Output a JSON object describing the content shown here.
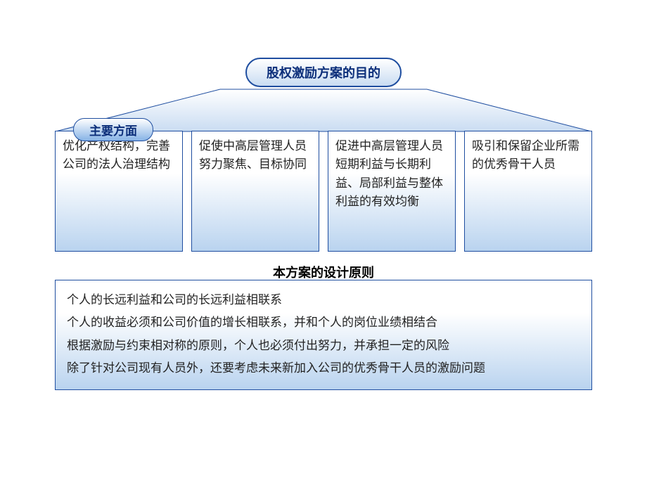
{
  "title": {
    "text": "股权激励方案的目的",
    "font_size": 18,
    "font_weight": "bold",
    "text_color": "#0b2e7a",
    "border_color": "#1f4ea0",
    "bg_gradient_top": "#ffffff",
    "bg_gradient_bottom": "#c9dcf2"
  },
  "trapezoid": {
    "fill_top": "#ffffff",
    "fill_bottom": "#c9dcf2",
    "stroke": "#1f4ea0"
  },
  "badge": {
    "text": "主要方面",
    "font_size": 17,
    "text_color": "#0b2e7a",
    "bg_gradient_top": "#ffffff",
    "bg_gradient_bottom": "#87b3e6",
    "border_color": "#1f4ea0"
  },
  "cards": {
    "font_size": 17,
    "text_color": "#222222",
    "border_color": "#1f4ea0",
    "bg_gradient_top": "#ffffff",
    "bg_gradient_bottom": "#b9d3ef",
    "items": [
      "优化产权结构，完善公司的法人治理结构",
      "促使中高层管理人员努力聚焦、目标协同",
      "促进中高层管理人员短期利益与长期利益、局部利益与整体利益的有效均衡",
      "吸引和保留企业所需的优秀骨干人员"
    ]
  },
  "section_title": {
    "text": "本方案的设计原则",
    "font_size": 18,
    "text_color": "#000000"
  },
  "principles": {
    "font_size": 17,
    "text_color": "#222222",
    "border_color": "#1f4ea0",
    "bg_gradient_top": "#ffffff",
    "bg_gradient_bottom": "#b9d3ef",
    "lines": [
      "个人的长远利益和公司的长远利益相联系",
      "个人的收益必须和公司价值的增长相联系，并和个人的岗位业绩相结合",
      "根据激励与约束相对称的原则，个人也必须付出努力，并承担一定的风险",
      "除了针对公司现有人员外，还要考虑未来新加入公司的优秀骨干人员的激励问题"
    ]
  },
  "background_color": "#ffffff"
}
